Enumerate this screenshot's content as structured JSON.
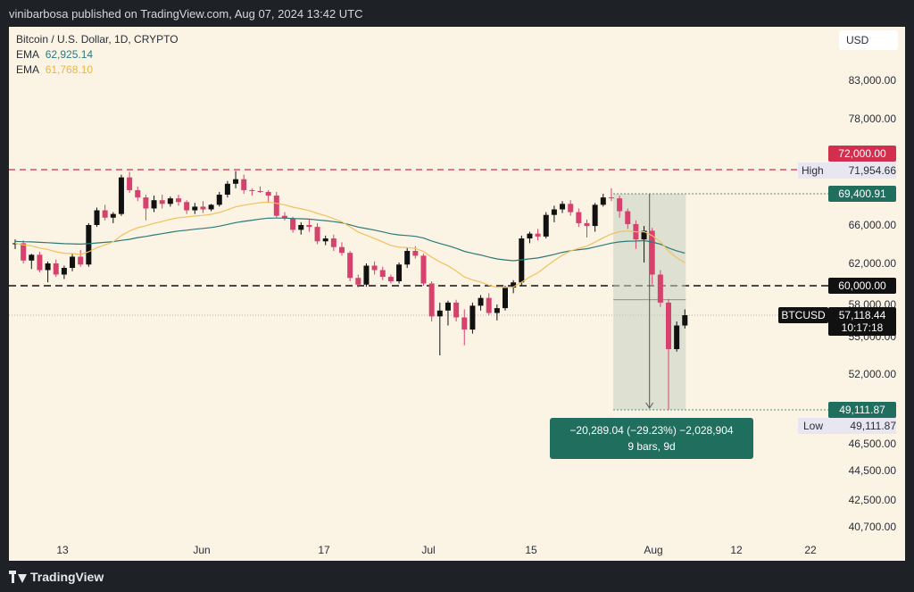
{
  "header": {
    "publisher_line": "vinibarbosa published on TradingView.com, Aug 07, 2024 13:42 UTC"
  },
  "footer": {
    "brand": "TradingView"
  },
  "legend": {
    "symbol_line": "Bitcoin / U.S. Dollar, 1D, CRYPTO",
    "ema1_label": "EMA",
    "ema1_value": "62,925.14",
    "ema2_label": "EMA",
    "ema2_value": "61,768.10"
  },
  "currency": "USD",
  "colors": {
    "up": "#111111",
    "down": "#d6426d",
    "ema_slow": "#2b7a78",
    "ema_fast": "#f0c25e",
    "red_label": "#d22f4e",
    "teal_label": "#1f6e5e",
    "black_label": "#111111"
  },
  "chart_data": {
    "type": "candlestick",
    "title": "Bitcoin / U.S. Dollar, 1D, CRYPTO",
    "x_tick_labels": [
      "13",
      "Jun",
      "17",
      "Jul",
      "15",
      "Aug",
      "12",
      "22"
    ],
    "y_tick_labels": [
      "83,000.00",
      "78,000.00",
      "66,000.00",
      "62,000.00",
      "58,000.00",
      "55,000.00",
      "52,000.00",
      "46,500.00",
      "44,500.00",
      "42,500.00",
      "40,700.00"
    ],
    "ohlc": [
      [
        64000,
        64500,
        63500,
        64100
      ],
      [
        64100,
        64400,
        62000,
        62300
      ],
      [
        62300,
        63000,
        61500,
        62900
      ],
      [
        62900,
        63200,
        61200,
        61400
      ],
      [
        61400,
        62200,
        60300,
        62000
      ],
      [
        62000,
        62400,
        60800,
        61000
      ],
      [
        61000,
        61800,
        60600,
        61600
      ],
      [
        61600,
        63000,
        61300,
        62700
      ],
      [
        62700,
        63400,
        61700,
        61900
      ],
      [
        61900,
        66200,
        61700,
        66000
      ],
      [
        66000,
        67900,
        65800,
        67600
      ],
      [
        67600,
        68200,
        66500,
        66800
      ],
      [
        66800,
        67400,
        66200,
        67200
      ],
      [
        67200,
        71500,
        67000,
        71200
      ],
      [
        71200,
        71800,
        69500,
        69800
      ],
      [
        69800,
        70200,
        68600,
        69000
      ],
      [
        69000,
        69300,
        66500,
        67800
      ],
      [
        67800,
        69200,
        67400,
        68700
      ],
      [
        68700,
        69300,
        67800,
        68300
      ],
      [
        68300,
        69100,
        68000,
        68900
      ],
      [
        68900,
        69300,
        68100,
        68500
      ],
      [
        68500,
        68700,
        67200,
        67600
      ],
      [
        67600,
        68400,
        67200,
        68000
      ],
      [
        68000,
        68600,
        67300,
        67700
      ],
      [
        67700,
        68300,
        67500,
        68200
      ],
      [
        68200,
        69600,
        68000,
        69300
      ],
      [
        69300,
        70800,
        69000,
        70500
      ],
      [
        70500,
        71900,
        70000,
        71000
      ],
      [
        71000,
        71500,
        69400,
        69800
      ],
      [
        69800,
        70000,
        69200,
        69700
      ],
      [
        69700,
        70200,
        69500,
        69600
      ],
      [
        69600,
        69800,
        68400,
        69200
      ],
      [
        69200,
        69600,
        66800,
        67000
      ],
      [
        67000,
        67400,
        66500,
        66700
      ],
      [
        66700,
        66900,
        65200,
        65500
      ],
      [
        65500,
        66300,
        65000,
        66000
      ],
      [
        66000,
        66600,
        65300,
        65800
      ],
      [
        65800,
        66200,
        64000,
        64300
      ],
      [
        64300,
        64900,
        63900,
        64600
      ],
      [
        64600,
        65000,
        63300,
        63700
      ],
      [
        63700,
        64200,
        62800,
        63100
      ],
      [
        63100,
        63300,
        60400,
        60700
      ],
      [
        60700,
        61000,
        59800,
        60100
      ],
      [
        60100,
        62000,
        59900,
        61800
      ],
      [
        61800,
        62200,
        61000,
        61400
      ],
      [
        61400,
        61700,
        60500,
        60800
      ],
      [
        60800,
        61000,
        60200,
        60400
      ],
      [
        60400,
        62100,
        60200,
        61900
      ],
      [
        61900,
        63600,
        61600,
        63300
      ],
      [
        63300,
        63800,
        62500,
        62800
      ],
      [
        62800,
        63000,
        60000,
        60200
      ],
      [
        60200,
        60400,
        56500,
        57000
      ],
      [
        57000,
        58200,
        53500,
        57500
      ],
      [
        57500,
        58400,
        56100,
        58200
      ],
      [
        58200,
        58500,
        56500,
        56900
      ],
      [
        56900,
        57600,
        54300,
        55700
      ],
      [
        55700,
        58200,
        55300,
        57900
      ],
      [
        57900,
        59000,
        57500,
        58700
      ],
      [
        58700,
        59200,
        57100,
        57300
      ],
      [
        57300,
        58000,
        56600,
        57700
      ],
      [
        57700,
        60000,
        57500,
        59800
      ],
      [
        59800,
        60500,
        59200,
        60300
      ],
      [
        60300,
        64900,
        60000,
        64600
      ],
      [
        64600,
        65300,
        64100,
        65100
      ],
      [
        65100,
        65600,
        64400,
        64800
      ],
      [
        64800,
        67400,
        64600,
        67100
      ],
      [
        67100,
        68100,
        66300,
        67700
      ],
      [
        67700,
        68600,
        67300,
        68300
      ],
      [
        68300,
        68700,
        67000,
        67400
      ],
      [
        67400,
        67800,
        65800,
        66200
      ],
      [
        66200,
        66600,
        64700,
        65900
      ],
      [
        65900,
        68400,
        65300,
        68200
      ],
      [
        68200,
        69400,
        68000,
        69000
      ],
      [
        69000,
        70000,
        68600,
        68900
      ],
      [
        68900,
        69200,
        66800,
        67500
      ],
      [
        67500,
        67800,
        65600,
        66100
      ],
      [
        66100,
        66500,
        63500,
        64500
      ],
      [
        64500,
        65900,
        62100,
        65400
      ],
      [
        65400,
        65700,
        60100,
        61000
      ],
      [
        61000,
        61400,
        57800,
        58200
      ],
      [
        58200,
        58600,
        49111.87,
        54000
      ],
      [
        54000,
        56500,
        53800,
        56100
      ],
      [
        56100,
        57600,
        55800,
        57118.44
      ]
    ],
    "ema_slow_label": "EMA 62,925.14",
    "ema_fast_label": "EMA 61,768.10",
    "levels": [
      {
        "price": 72000,
        "label": "72,000.00",
        "style": "dashed-red"
      },
      {
        "price": 60000,
        "label": "60,000.00",
        "style": "dashed-black"
      }
    ],
    "high": {
      "label": "High",
      "value": "71,954.66"
    },
    "low": {
      "label": "Low",
      "value": "49,111.87"
    },
    "range_top_label": "69,400.91",
    "range_bottom_label": "49,111.87",
    "last_price": {
      "symbol": "BTCUSD",
      "price": "57,118.44",
      "countdown": "10:17:18"
    },
    "measure": {
      "line1": "−20,289.04 (−29.23%) −2,028,904",
      "line2": "9 bars, 9d"
    }
  }
}
